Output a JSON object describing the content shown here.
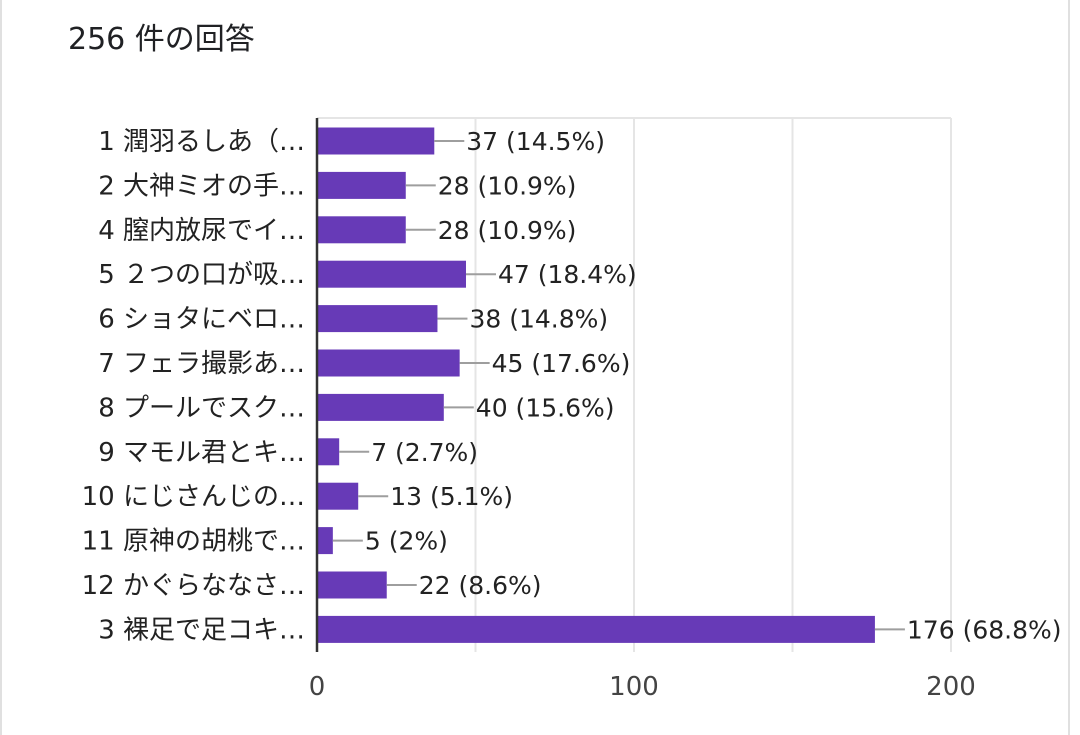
{
  "header": {
    "response_count": "256 件の回答"
  },
  "colors": {
    "bar": "#673ab7",
    "grid": "#e5e5e5",
    "axis": "#333333",
    "leader": "#9e9e9e"
  },
  "chart_data": {
    "type": "bar",
    "orientation": "horizontal",
    "title": "",
    "xlabel": "",
    "ylabel": "",
    "xlim": [
      0,
      200
    ],
    "ticks": [
      0,
      100,
      200
    ],
    "grid": true,
    "categories": [
      "1 潤羽るしあ（…",
      "2 大神ミオの手…",
      "4 膣内放尿でイ…",
      "5 ２つの口が吸…",
      "6 ショタにベロ…",
      "7 フェラ撮影あ…",
      "8 プールでスク…",
      "9 マモル君とキ…",
      "10 にじさんじの…",
      "11 原神の胡桃で…",
      "12 かぐらななさ…",
      "3 裸足で足コキ…"
    ],
    "values": [
      37,
      28,
      28,
      47,
      38,
      45,
      40,
      7,
      13,
      5,
      22,
      176
    ],
    "value_labels": [
      "37 (14.5%)",
      "28 (10.9%)",
      "28 (10.9%)",
      "47 (18.4%)",
      "38 (14.8%)",
      "45 (17.6%)",
      "40 (15.6%)",
      "7 (2.7%)",
      "13 (5.1%)",
      "5 (2%)",
      "22 (8.6%)",
      "176 (68.8%)"
    ]
  }
}
